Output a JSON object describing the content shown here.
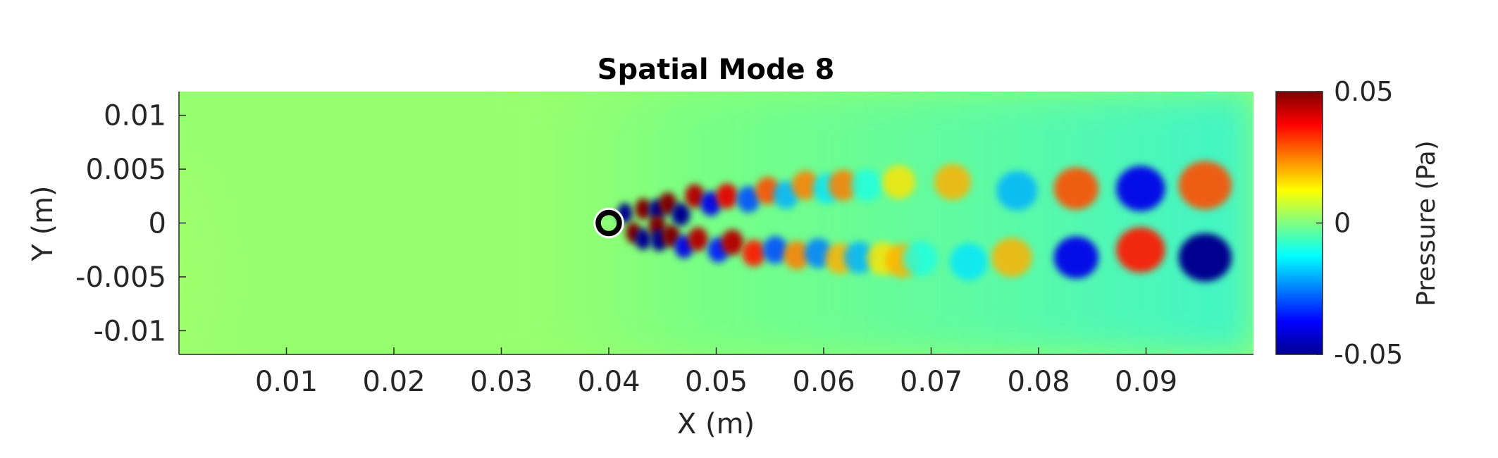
{
  "chart_data": {
    "type": "heatmap",
    "title": "Spatial Mode 8",
    "xlabel": "X (m)",
    "ylabel": "Y (m)",
    "xlim": [
      0,
      0.1
    ],
    "ylim": [
      -0.0122,
      0.0122
    ],
    "xticks": [
      {
        "value": 0.01,
        "label": "0.01"
      },
      {
        "value": 0.02,
        "label": "0.02"
      },
      {
        "value": 0.03,
        "label": "0.03"
      },
      {
        "value": 0.04,
        "label": "0.04"
      },
      {
        "value": 0.05,
        "label": "0.05"
      },
      {
        "value": 0.06,
        "label": "0.06"
      },
      {
        "value": 0.07,
        "label": "0.07"
      },
      {
        "value": 0.08,
        "label": "0.08"
      },
      {
        "value": 0.09,
        "label": "0.09"
      }
    ],
    "yticks": [
      {
        "value": 0.01,
        "label": "0.01"
      },
      {
        "value": 0.005,
        "label": "0.005"
      },
      {
        "value": 0,
        "label": "0"
      },
      {
        "value": -0.005,
        "label": "-0.005"
      },
      {
        "value": -0.01,
        "label": "-0.01"
      }
    ],
    "colorbar": {
      "label": "Pressure (Pa)",
      "range": [
        -0.05,
        0.05
      ],
      "colormap": "jet",
      "ticks": [
        {
          "value": 0.05,
          "label": "0.05"
        },
        {
          "value": 0,
          "label": "0"
        },
        {
          "value": -0.05,
          "label": "-0.05"
        }
      ]
    },
    "cylinder": {
      "x": 0.04,
      "y": 0,
      "diameter": 0.002
    },
    "structures": [
      {
        "x": 0.0415,
        "y": 0.0009,
        "value": -0.05
      },
      {
        "x": 0.0423,
        "y": -0.0009,
        "value": 0.05
      },
      {
        "x": 0.0432,
        "y": 0.0013,
        "value": 0.05
      },
      {
        "x": 0.0432,
        "y": -0.0015,
        "value": -0.05
      },
      {
        "x": 0.0445,
        "y": 0.0012,
        "value": -0.05
      },
      {
        "x": 0.0445,
        "y": -0.0003,
        "value": 0.05
      },
      {
        "x": 0.0447,
        "y": -0.0016,
        "value": -0.05
      },
      {
        "x": 0.0455,
        "y": 0.0018,
        "value": 0.05
      },
      {
        "x": 0.0458,
        "y": -0.0012,
        "value": 0.05
      },
      {
        "x": 0.0467,
        "y": 0.0008,
        "value": -0.05
      },
      {
        "x": 0.047,
        "y": -0.0022,
        "value": -0.04
      },
      {
        "x": 0.048,
        "y": 0.0025,
        "value": 0.045
      },
      {
        "x": 0.0483,
        "y": -0.0015,
        "value": 0.045
      },
      {
        "x": 0.0495,
        "y": 0.0018,
        "value": -0.04
      },
      {
        "x": 0.0502,
        "y": -0.0025,
        "value": -0.035
      },
      {
        "x": 0.051,
        "y": 0.0025,
        "value": 0.04
      },
      {
        "x": 0.0515,
        "y": -0.0018,
        "value": 0.045
      },
      {
        "x": 0.053,
        "y": 0.0022,
        "value": -0.03
      },
      {
        "x": 0.0535,
        "y": -0.0028,
        "value": 0.035
      },
      {
        "x": 0.0548,
        "y": 0.003,
        "value": 0.03
      },
      {
        "x": 0.0555,
        "y": -0.0025,
        "value": -0.03
      },
      {
        "x": 0.0565,
        "y": 0.0026,
        "value": -0.02
      },
      {
        "x": 0.0575,
        "y": -0.003,
        "value": 0.025
      },
      {
        "x": 0.0583,
        "y": 0.0035,
        "value": 0.025
      },
      {
        "x": 0.0595,
        "y": -0.0028,
        "value": -0.025
      },
      {
        "x": 0.0603,
        "y": 0.0032,
        "value": -0.015
      },
      {
        "x": 0.0615,
        "y": -0.0033,
        "value": 0.02
      },
      {
        "x": 0.0618,
        "y": 0.0035,
        "value": 0.025
      },
      {
        "x": 0.0633,
        "y": -0.0032,
        "value": -0.02
      },
      {
        "x": 0.064,
        "y": 0.0035,
        "value": -0.01
      },
      {
        "x": 0.0655,
        "y": -0.0033,
        "value": 0.015
      },
      {
        "x": 0.067,
        "y": 0.0038,
        "value": 0.015
      },
      {
        "x": 0.0673,
        "y": -0.0035,
        "value": 0.02
      },
      {
        "x": 0.069,
        "y": -0.0033,
        "value": -0.01
      },
      {
        "x": 0.072,
        "y": 0.0038,
        "value": 0.02
      },
      {
        "x": 0.0735,
        "y": -0.0036,
        "value": -0.015
      },
      {
        "x": 0.0775,
        "y": -0.0032,
        "value": 0.02
      },
      {
        "x": 0.078,
        "y": 0.003,
        "value": -0.02
      },
      {
        "x": 0.0835,
        "y": 0.0032,
        "value": 0.03
      },
      {
        "x": 0.0835,
        "y": -0.0032,
        "value": -0.04
      },
      {
        "x": 0.0895,
        "y": 0.0032,
        "value": -0.04
      },
      {
        "x": 0.0895,
        "y": -0.0025,
        "value": 0.035
      },
      {
        "x": 0.0955,
        "y": 0.0035,
        "value": 0.03
      },
      {
        "x": 0.0955,
        "y": -0.0032,
        "value": -0.05
      }
    ]
  },
  "colors": {
    "background_field": "#96ff6e",
    "wake_field": "#64ffa0",
    "axis": "#262626"
  }
}
